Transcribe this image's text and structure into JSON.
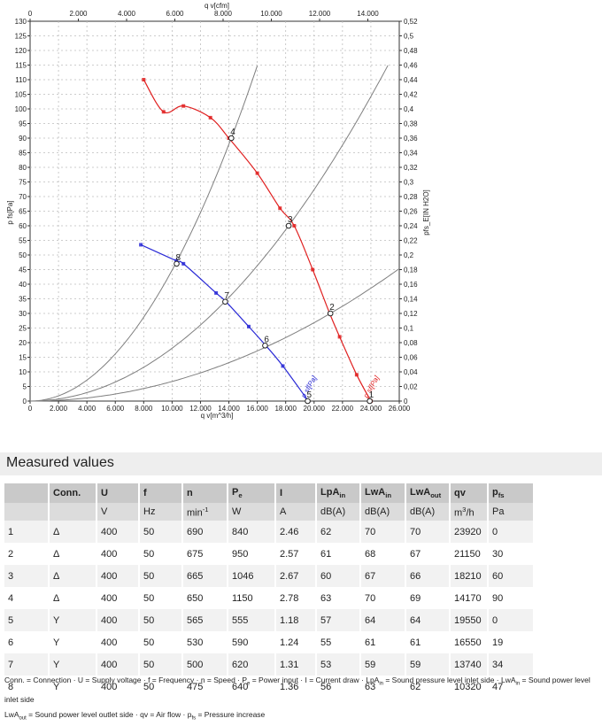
{
  "chart_data": {
    "type": "line",
    "x_axis_bottom": {
      "label": "q v[m^3/h]",
      "range": [
        0,
        26000
      ],
      "ticks": [
        "0",
        "2.000",
        "4.000",
        "6.000",
        "8.000",
        "10.000",
        "12.000",
        "14.000",
        "16.000",
        "18.000",
        "20.000",
        "22.000",
        "24.000",
        "26.000"
      ]
    },
    "x_axis_top": {
      "label": "q v[cfm]",
      "range": [
        0,
        15303
      ],
      "ticks": [
        "0",
        "2.000",
        "4.000",
        "6.000",
        "8.000",
        "10.000",
        "12.000",
        "14.000"
      ]
    },
    "y_axis_left": {
      "label": "p fs[Pa]",
      "range": [
        0,
        130
      ],
      "ticks": [
        "0",
        "5",
        "10",
        "15",
        "20",
        "25",
        "30",
        "35",
        "40",
        "45",
        "50",
        "55",
        "60",
        "65",
        "70",
        "75",
        "80",
        "85",
        "90",
        "95",
        "100",
        "105",
        "110",
        "115",
        "120",
        "125",
        "130"
      ]
    },
    "y_axis_right": {
      "label": "pfs_E[IN H2O]",
      "range": [
        0,
        0.52
      ],
      "ticks": [
        "0",
        "0,02",
        "0,04",
        "0,06",
        "0,08",
        "0,1",
        "0,12",
        "0,14",
        "0,16",
        "0,18",
        "0,2",
        "0,22",
        "0,24",
        "0,26",
        "0,28",
        "0,3",
        "0,32",
        "0,34",
        "0,36",
        "0,38",
        "0,4",
        "0,42",
        "0,44",
        "0,46",
        "0,48",
        "0,5",
        "0,52"
      ]
    },
    "grid": true,
    "series": [
      {
        "name": "p sf[Pa]",
        "color": "#e02020",
        "x": [
          8000,
          9400,
          10800,
          12700,
          14000,
          16000,
          17600,
          18600,
          19900,
          21100,
          21800,
          23000,
          24000
        ],
        "y": [
          110,
          99,
          101,
          97,
          90,
          78,
          66,
          60,
          45,
          30,
          22,
          9,
          0
        ]
      },
      {
        "name": "p sf[Pa]",
        "color": "#2a2ad6",
        "x": [
          7800,
          10300,
          10800,
          13100,
          13800,
          15400,
          16600,
          17800,
          19600
        ],
        "y": [
          53.5,
          48,
          47,
          37,
          34,
          25.5,
          19,
          12,
          0
        ]
      }
    ],
    "system_curves_color": "#7f7f7f",
    "operating_points": [
      {
        "label": "1",
        "x": 23920,
        "y": 0
      },
      {
        "label": "2",
        "x": 21150,
        "y": 30
      },
      {
        "label": "3",
        "x": 18210,
        "y": 60
      },
      {
        "label": "4",
        "x": 14170,
        "y": 90
      },
      {
        "label": "5",
        "x": 19550,
        "y": 0
      },
      {
        "label": "6",
        "x": 16550,
        "y": 19
      },
      {
        "label": "7",
        "x": 13740,
        "y": 34
      },
      {
        "label": "8",
        "x": 10320,
        "y": 47
      }
    ]
  },
  "section_title": "Measured values",
  "table": {
    "headers": [
      "",
      "Conn.",
      "U",
      "f",
      "n",
      "P",
      "I",
      "LpA",
      "LwA",
      "LwA",
      "qv",
      "p"
    ],
    "header_subs": [
      "",
      "",
      "",
      "",
      "",
      "e",
      "",
      "in",
      "in",
      "out",
      "",
      "fs"
    ],
    "units": [
      "",
      "",
      "V",
      "Hz",
      "min",
      "W",
      "A",
      "dB(A)",
      "dB(A)",
      "dB(A)",
      "m",
      "Pa"
    ],
    "unit_sups": [
      "",
      "",
      "",
      "",
      "-1",
      "",
      "",
      "",
      "",
      "",
      "3",
      ""
    ],
    "unit_suffix": [
      "",
      "",
      "",
      "",
      "",
      "",
      "",
      "",
      "",
      "",
      "/h",
      ""
    ],
    "rows": [
      [
        "1",
        "Δ",
        "400",
        "50",
        "690",
        "840",
        "2.46",
        "62",
        "70",
        "70",
        "23920",
        "0"
      ],
      [
        "2",
        "Δ",
        "400",
        "50",
        "675",
        "950",
        "2.57",
        "61",
        "68",
        "67",
        "21150",
        "30"
      ],
      [
        "3",
        "Δ",
        "400",
        "50",
        "665",
        "1046",
        "2.67",
        "60",
        "67",
        "66",
        "18210",
        "60"
      ],
      [
        "4",
        "Δ",
        "400",
        "50",
        "650",
        "1150",
        "2.78",
        "63",
        "70",
        "69",
        "14170",
        "90"
      ],
      [
        "5",
        "Y",
        "400",
        "50",
        "565",
        "555",
        "1.18",
        "57",
        "64",
        "64",
        "19550",
        "0"
      ],
      [
        "6",
        "Y",
        "400",
        "50",
        "530",
        "590",
        "1.24",
        "55",
        "61",
        "61",
        "16550",
        "19"
      ],
      [
        "7",
        "Y",
        "400",
        "50",
        "500",
        "620",
        "1.31",
        "53",
        "59",
        "59",
        "13740",
        "34"
      ],
      [
        "8",
        "Y",
        "400",
        "50",
        "475",
        "640",
        "1.36",
        "56",
        "63",
        "62",
        "10320",
        "47"
      ]
    ]
  },
  "legend": {
    "line1": "Conn. = Connection · U = Supply voltage · f = Frequency · n = Speed · P",
    "line1_sub1": "e",
    "line1_b": " = Power input · I = Current draw · LpA",
    "line1_sub2": "in",
    "line1_c": " = Sound pressure level inlet side · LwA",
    "line1_sub3": "in",
    "line1_d": " = Sound power level inlet side",
    "line2": "LwA",
    "line2_sub1": "out",
    "line2_b": " = Sound power level outlet side · qv = Air flow · p",
    "line2_sub2": "fs",
    "line2_c": " = Pressure increase"
  }
}
